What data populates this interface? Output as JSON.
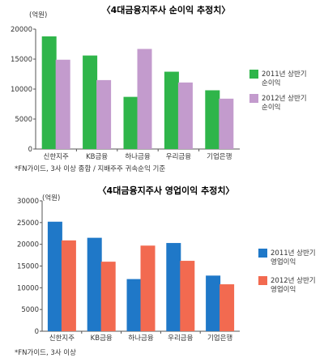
{
  "chart_data": [
    {
      "type": "bar",
      "title": "〈4대금융지주사 순이익 추정치〉",
      "unit_label": "(억원)",
      "categories": [
        "신한지주",
        "KB금융",
        "하나금융",
        "우리금융",
        "기업은행"
      ],
      "series": [
        {
          "name": "2011년 상반기 순이익",
          "name_lines": [
            "2011년 상반기",
            "순이익"
          ],
          "color": "#2fb54a",
          "values": [
            18800,
            15600,
            8700,
            12900,
            9800
          ]
        },
        {
          "name": "2012년 상반기 순이익",
          "name_lines": [
            "2012년 상반기",
            "순이익"
          ],
          "color": "#c39bcd",
          "values": [
            14900,
            11500,
            16700,
            11100,
            8400
          ]
        }
      ],
      "ylim": [
        0,
        20000
      ],
      "yticks": [
        0,
        5000,
        10000,
        15000,
        20000
      ],
      "legend_position": "right",
      "grid": false,
      "footnote": "*FN가이드, 3사 이상 종합 / 지배주주 귀속순익 기준"
    },
    {
      "type": "bar",
      "title": "〈4대금융지주사 영업이익 추정치〉",
      "unit_label": "(억원)",
      "categories": [
        "신한지주",
        "KB금융",
        "하나금융",
        "우리금융",
        "기업은행"
      ],
      "series": [
        {
          "name": "2011년 상반기 영업이익",
          "name_lines": [
            "2011년 상반기",
            "영업이익"
          ],
          "color": "#1f78c8",
          "values": [
            25200,
            21500,
            12000,
            20300,
            12800
          ]
        },
        {
          "name": "2012년 상반기 영업이익",
          "name_lines": [
            "2012년 상반기",
            "영업이익"
          ],
          "color": "#f26a50",
          "values": [
            20900,
            16000,
            19700,
            16200,
            10800
          ]
        }
      ],
      "ylim": [
        0,
        30000
      ],
      "yticks": [
        0,
        5000,
        10000,
        15000,
        20000,
        25000,
        30000
      ],
      "legend_position": "right",
      "grid": false,
      "footnote": "*FN가이드, 3사 이상"
    }
  ]
}
